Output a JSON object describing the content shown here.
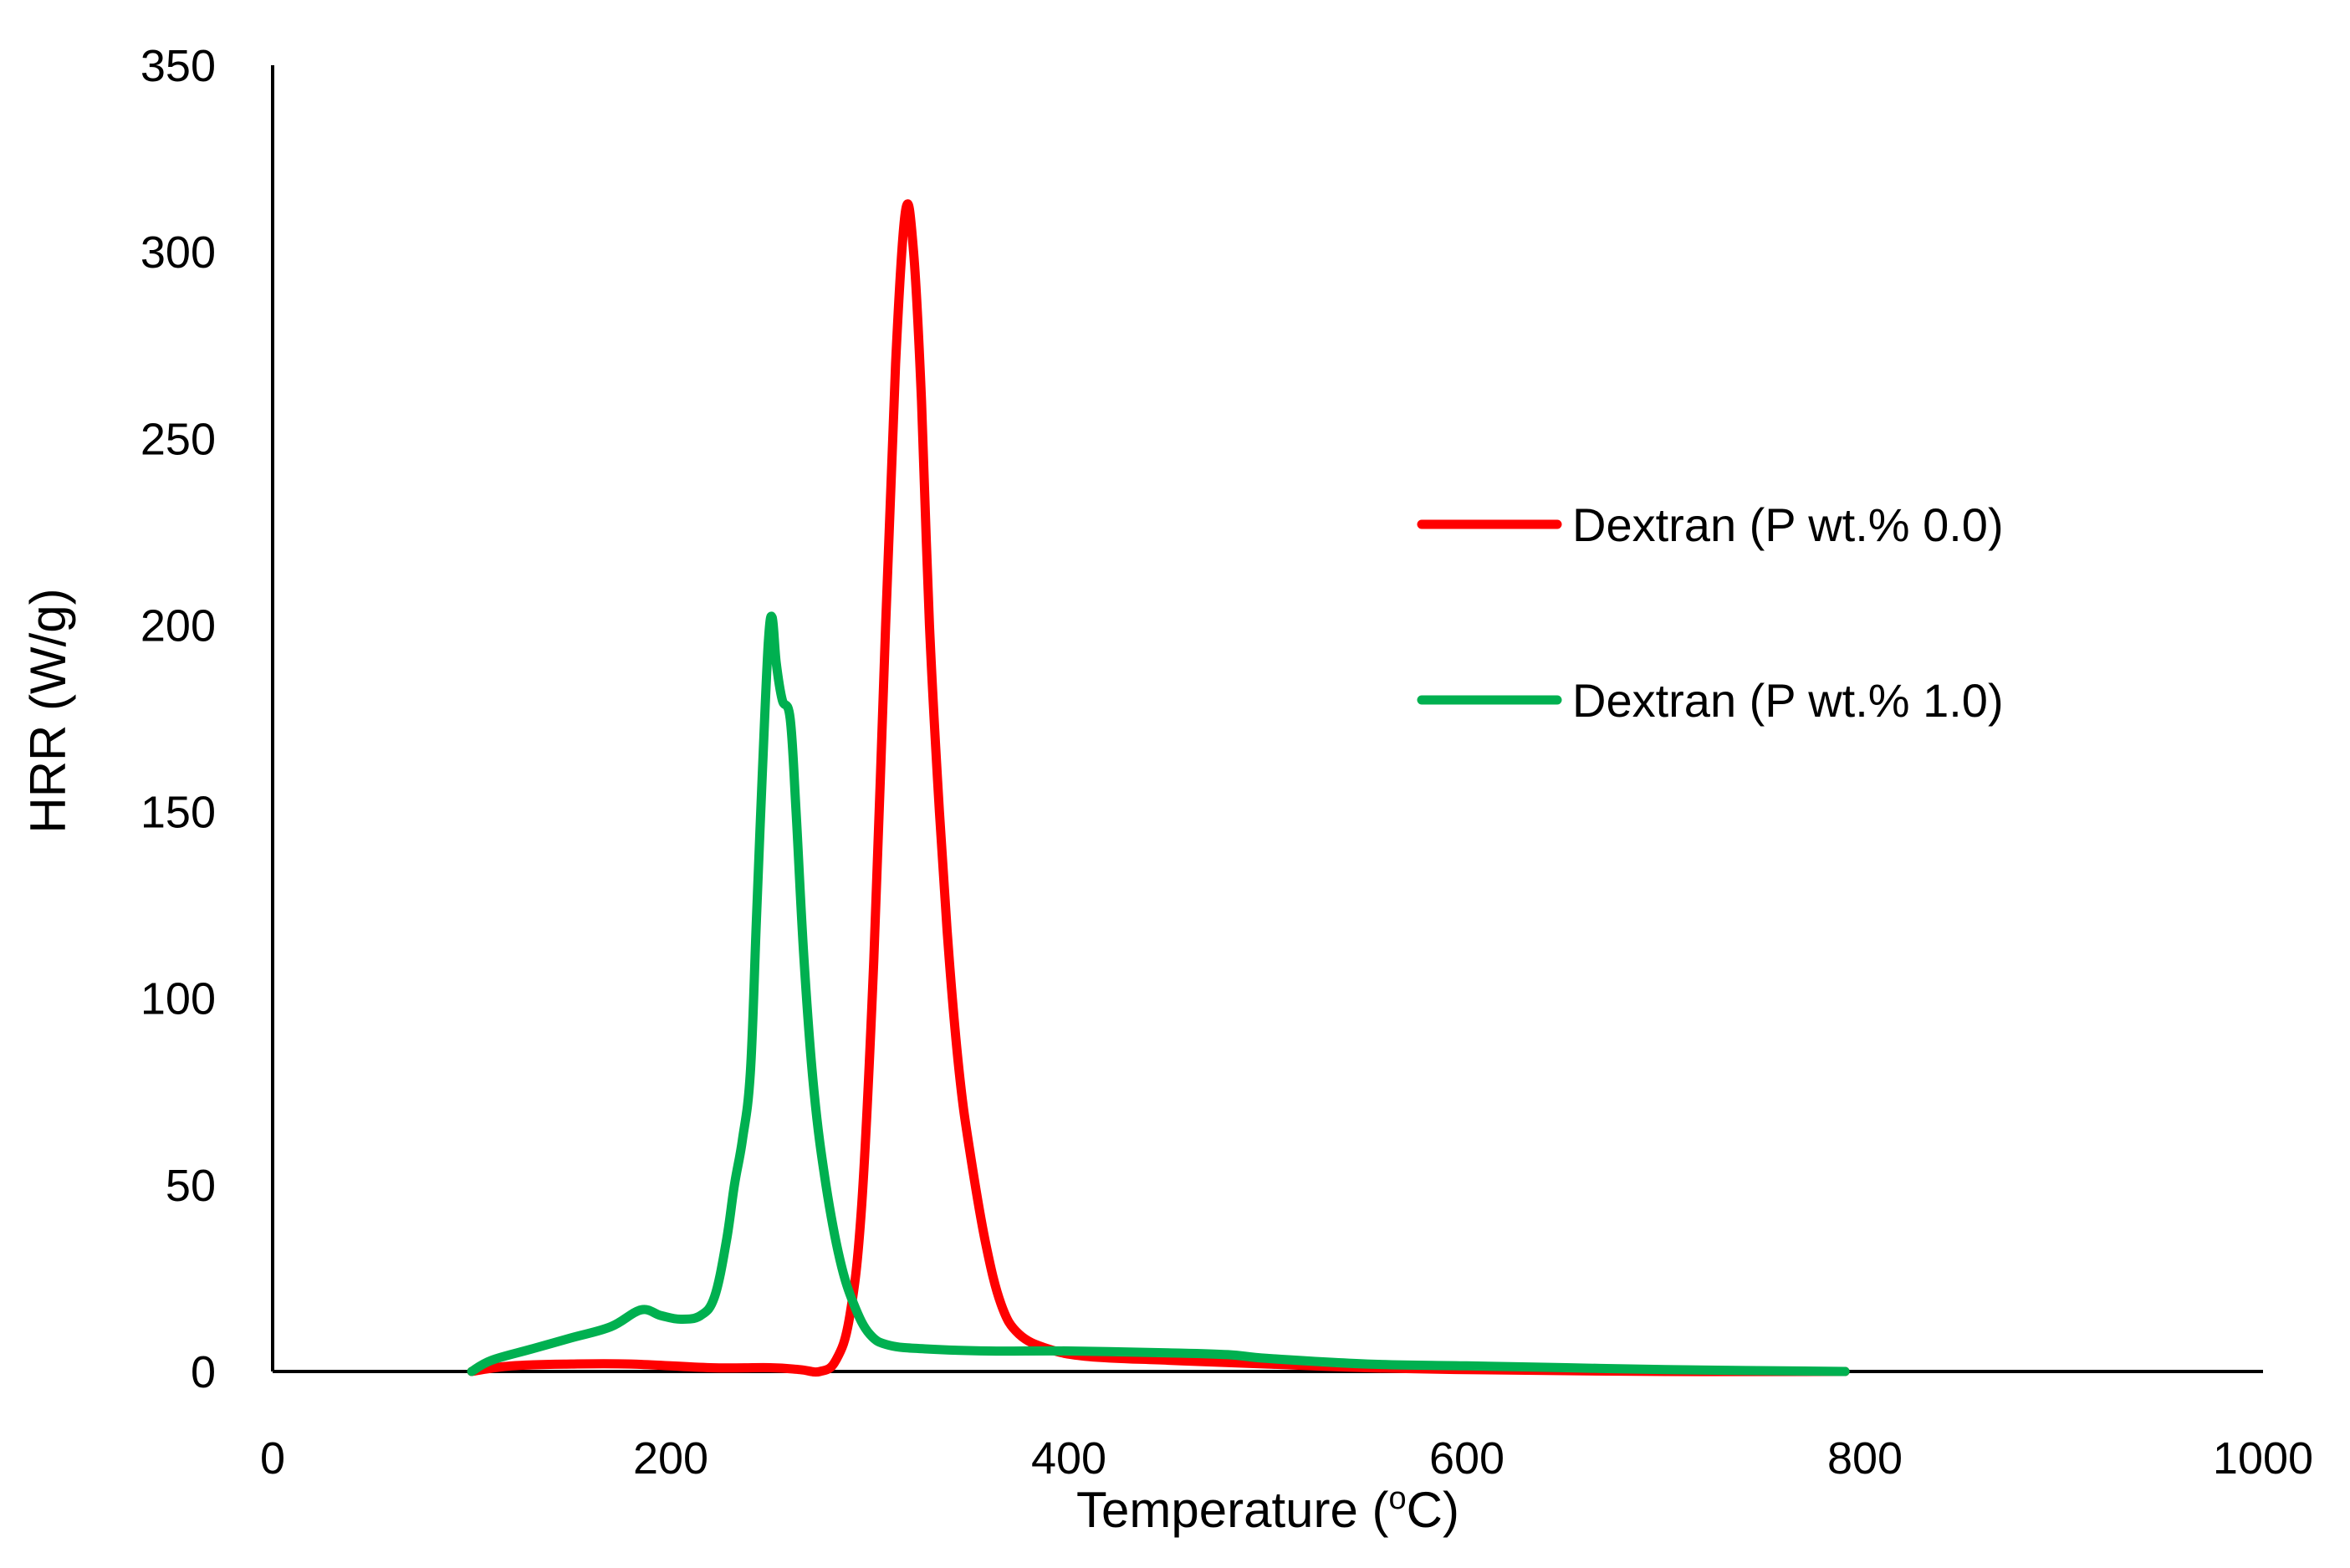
{
  "chart_data": {
    "type": "line",
    "title": "",
    "xlabel": "Temperature (",
    "xlabel_sup": "o",
    "xlabel_suffix": "C)",
    "ylabel": "HRR (W/g)",
    "xlim": [
      0,
      1000
    ],
    "ylim": [
      0,
      350
    ],
    "x_ticks": [
      0,
      200,
      400,
      600,
      800,
      1000
    ],
    "y_ticks": [
      0,
      50,
      100,
      150,
      200,
      250,
      300,
      350
    ],
    "grid": false,
    "legend_position": "right",
    "series": [
      {
        "name": "Dextran (P wt.% 0.0)",
        "color": "#ff0000",
        "points": [
          [
            100,
            0
          ],
          [
            120,
            1.5
          ],
          [
            150,
            2
          ],
          [
            180,
            2
          ],
          [
            220,
            1
          ],
          [
            250,
            1
          ],
          [
            265,
            0.5
          ],
          [
            275,
            0
          ],
          [
            283,
            3
          ],
          [
            290,
            15
          ],
          [
            296,
            45
          ],
          [
            302,
            110
          ],
          [
            308,
            200
          ],
          [
            313,
            270
          ],
          [
            318,
            311
          ],
          [
            322,
            300
          ],
          [
            326,
            260
          ],
          [
            330,
            200
          ],
          [
            335,
            150
          ],
          [
            340,
            110
          ],
          [
            345,
            80
          ],
          [
            350,
            60
          ],
          [
            358,
            35
          ],
          [
            366,
            18
          ],
          [
            375,
            10
          ],
          [
            390,
            6
          ],
          [
            410,
            4
          ],
          [
            450,
            3
          ],
          [
            500,
            2
          ],
          [
            550,
            1
          ],
          [
            600,
            0.5
          ],
          [
            700,
            0
          ],
          [
            790,
            0
          ]
        ]
      },
      {
        "name": "Dextran (P wt.% 1.0)",
        "color": "#00b050",
        "points": [
          [
            100,
            0
          ],
          [
            110,
            3
          ],
          [
            130,
            6
          ],
          [
            150,
            9
          ],
          [
            170,
            12
          ],
          [
            185,
            16.5
          ],
          [
            195,
            15
          ],
          [
            205,
            14
          ],
          [
            215,
            15
          ],
          [
            222,
            20
          ],
          [
            228,
            35
          ],
          [
            232,
            50
          ],
          [
            236,
            62
          ],
          [
            240,
            80
          ],
          [
            243,
            120
          ],
          [
            246,
            160
          ],
          [
            249,
            195
          ],
          [
            251,
            202
          ],
          [
            253,
            190
          ],
          [
            256,
            180
          ],
          [
            260,
            175
          ],
          [
            263,
            150
          ],
          [
            267,
            110
          ],
          [
            272,
            75
          ],
          [
            278,
            50
          ],
          [
            285,
            30
          ],
          [
            292,
            18
          ],
          [
            300,
            10
          ],
          [
            310,
            7
          ],
          [
            330,
            6
          ],
          [
            360,
            5.5
          ],
          [
            400,
            5.5
          ],
          [
            450,
            5
          ],
          [
            480,
            4.5
          ],
          [
            500,
            3.5
          ],
          [
            550,
            2
          ],
          [
            600,
            1.5
          ],
          [
            650,
            1
          ],
          [
            700,
            0.5
          ],
          [
            790,
            0
          ]
        ]
      }
    ]
  }
}
